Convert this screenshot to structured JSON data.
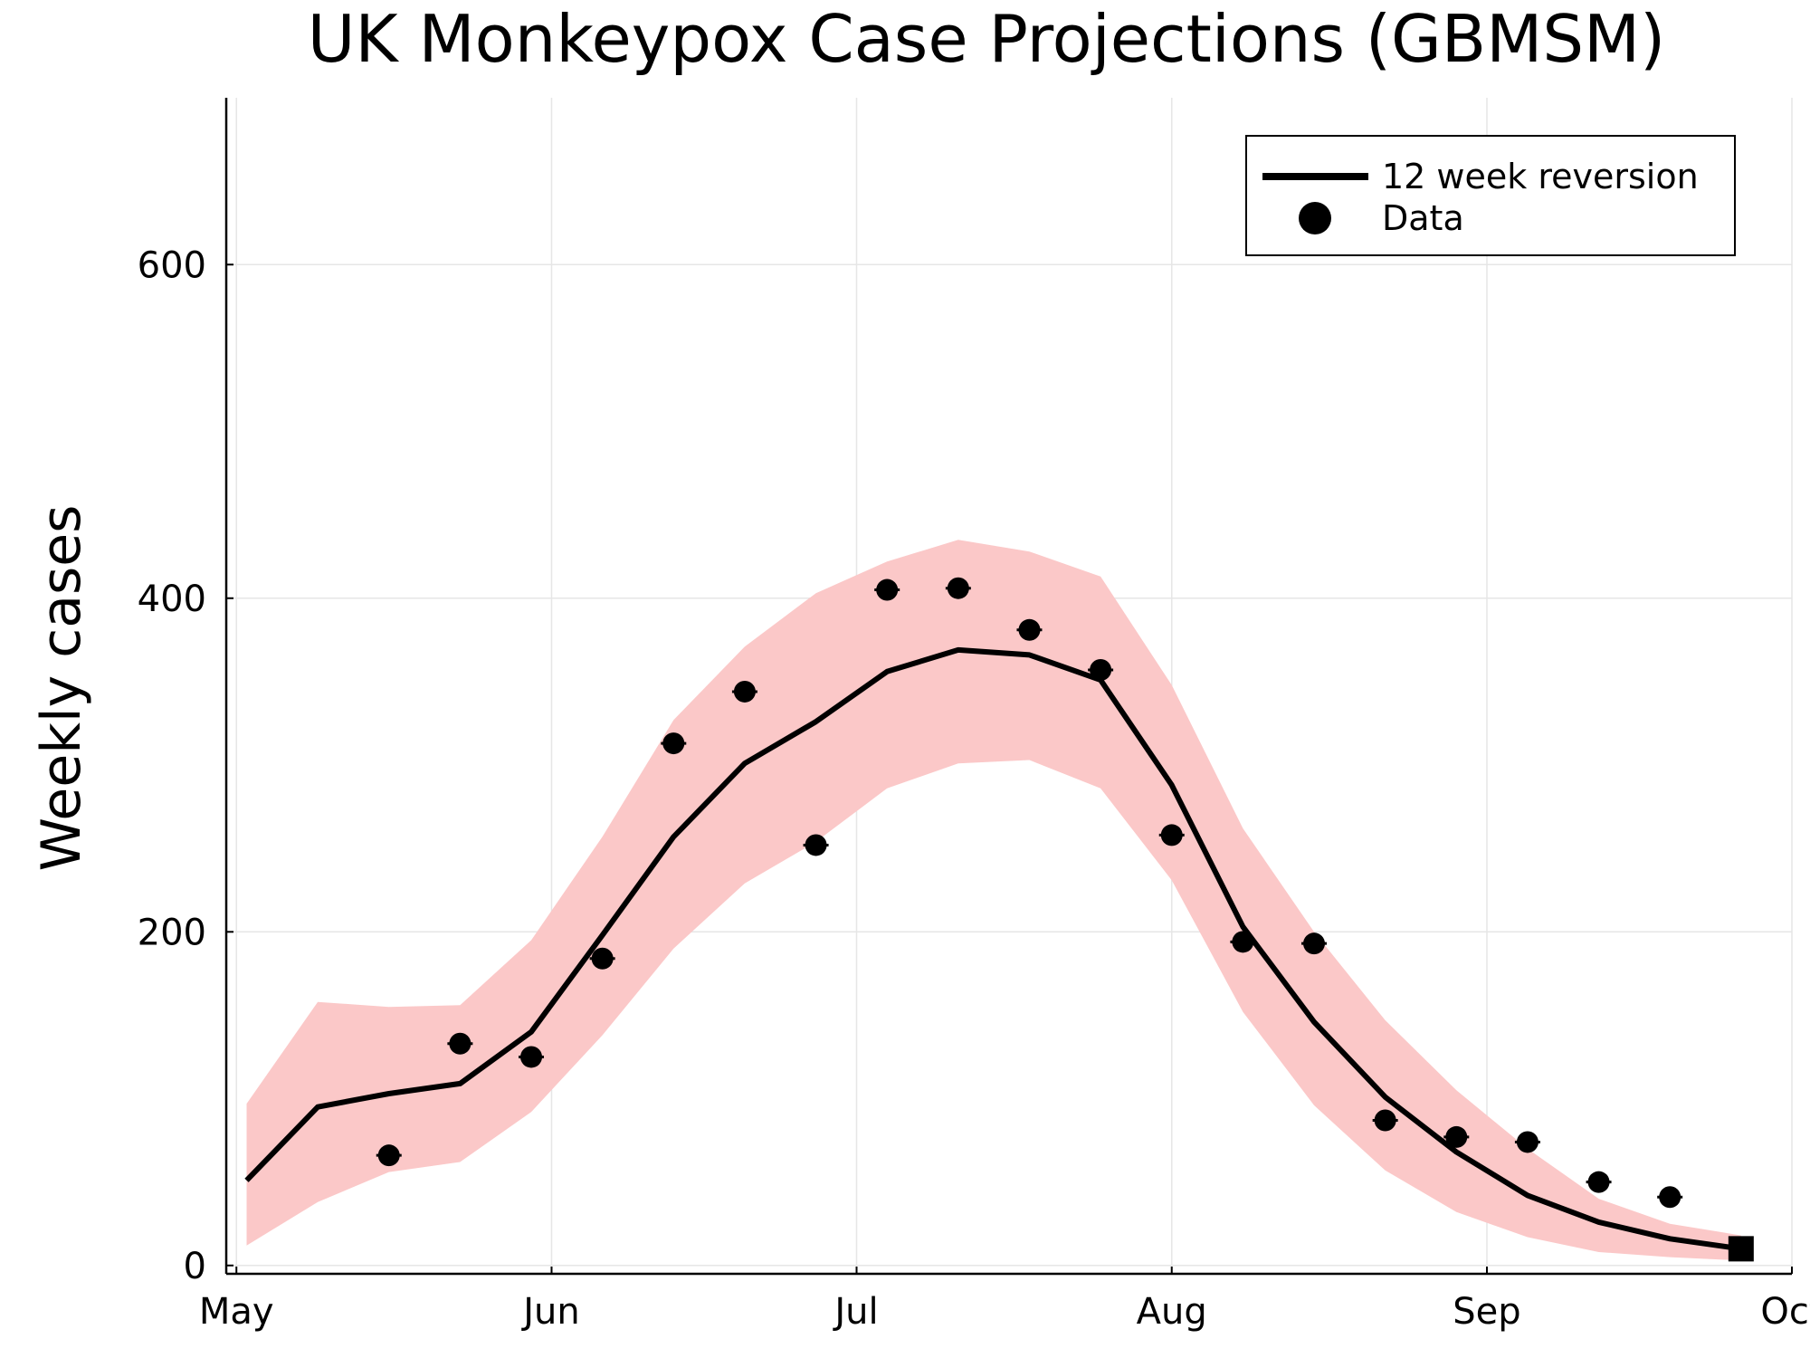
{
  "chart_data": {
    "type": "line",
    "title": "UK Monkeypox Case Projections (GBMSM)",
    "xlabel": "",
    "ylabel": "Weekly cases",
    "xlim": [
      "2022-04-30",
      "2022-10-01"
    ],
    "ylim": [
      -5,
      700
    ],
    "x_ticks": [
      {
        "date": "2022-05-01",
        "label": "May"
      },
      {
        "date": "2022-06-01",
        "label": "Jun"
      },
      {
        "date": "2022-07-01",
        "label": "Jul"
      },
      {
        "date": "2022-08-01",
        "label": "Aug"
      },
      {
        "date": "2022-09-01",
        "label": "Sep"
      },
      {
        "date": "2022-10-01",
        "label": "Oct"
      }
    ],
    "y_ticks": [
      0,
      200,
      400,
      600
    ],
    "grid": true,
    "legend": {
      "position": "top-right",
      "entries": [
        {
          "label": "12 week reversion",
          "marker": "line"
        },
        {
          "label": "Data",
          "marker": "circle"
        }
      ]
    },
    "colors": {
      "line": "#000000",
      "points": "#000000",
      "band": "#fbc8c8"
    },
    "series": [
      {
        "name": "12 week reversion",
        "type": "line",
        "x": [
          "2022-05-02",
          "2022-05-09",
          "2022-05-16",
          "2022-05-23",
          "2022-05-30",
          "2022-06-06",
          "2022-06-13",
          "2022-06-20",
          "2022-06-27",
          "2022-07-04",
          "2022-07-11",
          "2022-07-18",
          "2022-07-25",
          "2022-08-01",
          "2022-08-08",
          "2022-08-15",
          "2022-08-22",
          "2022-08-29",
          "2022-09-05",
          "2022-09-12",
          "2022-09-19",
          "2022-09-26"
        ],
        "y": [
          51,
          95,
          103,
          109,
          140,
          198,
          257,
          301,
          326,
          356,
          369,
          366,
          351,
          288,
          203,
          146,
          101,
          68,
          42,
          26,
          16,
          10
        ],
        "band_lower": [
          12,
          38,
          56,
          62,
          92,
          138,
          190,
          229,
          254,
          286,
          301,
          303,
          286,
          231,
          152,
          96,
          57,
          32,
          17,
          8,
          5,
          3
        ],
        "band_upper": [
          97,
          158,
          155,
          156,
          195,
          257,
          327,
          371,
          403,
          422,
          435,
          428,
          413,
          348,
          262,
          200,
          147,
          105,
          70,
          40,
          25,
          18
        ]
      },
      {
        "name": "Data",
        "type": "scatter",
        "x": [
          "2022-05-16",
          "2022-05-23",
          "2022-05-30",
          "2022-06-06",
          "2022-06-13",
          "2022-06-20",
          "2022-06-27",
          "2022-07-04",
          "2022-07-11",
          "2022-07-18",
          "2022-07-25",
          "2022-08-01",
          "2022-08-08",
          "2022-08-15",
          "2022-08-22",
          "2022-08-29",
          "2022-09-05",
          "2022-09-12",
          "2022-09-19"
        ],
        "y": [
          66,
          133,
          125,
          184,
          313,
          344,
          252,
          405,
          406,
          381,
          357,
          258,
          194,
          193,
          87,
          77,
          74,
          50,
          41
        ]
      }
    ],
    "last_point": {
      "x": "2022-09-26",
      "y": 10,
      "marker": "square"
    }
  }
}
